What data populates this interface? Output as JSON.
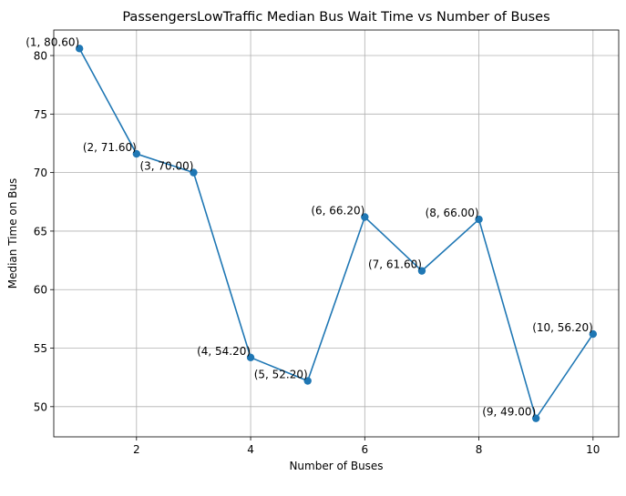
{
  "chart_data": {
    "type": "line",
    "title": "PassengersLowTraffic Median Bus Wait Time vs Number of Buses",
    "xlabel": "Number of Buses",
    "ylabel": "Median Time on Bus",
    "x": [
      1,
      2,
      3,
      4,
      5,
      6,
      7,
      8,
      9,
      10
    ],
    "y": [
      80.6,
      71.6,
      70.0,
      54.2,
      52.2,
      66.2,
      61.6,
      66.0,
      49.0,
      56.2
    ],
    "point_labels": [
      "(1, 80.60)",
      "(2, 71.60)",
      "(3, 70.00)",
      "(4, 54.20)",
      "(5, 52.20)",
      "(6, 66.20)",
      "(7, 61.60)",
      "(8, 66.00)",
      "(9, 49.00)",
      "(10, 56.20)"
    ],
    "xlim": [
      0.55,
      10.45
    ],
    "ylim": [
      47.42,
      82.18
    ],
    "xticks": [
      2,
      4,
      6,
      8,
      10
    ],
    "yticks": [
      50,
      55,
      60,
      65,
      70,
      75,
      80
    ],
    "grid": true,
    "line_color": "#1f77b4",
    "marker_color": "#1f77b4"
  }
}
